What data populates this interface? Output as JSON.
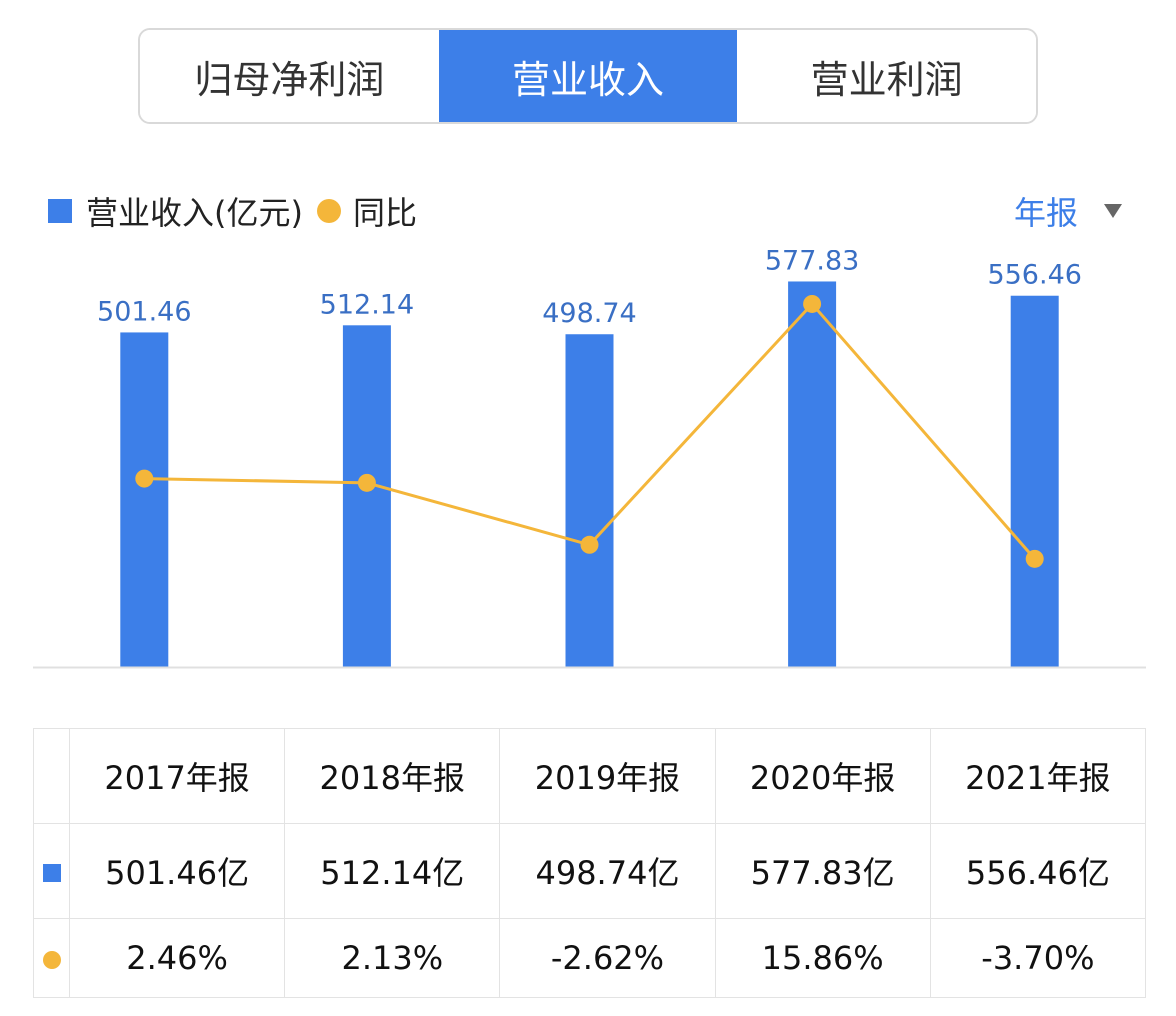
{
  "tabs": [
    {
      "label": "归母净利润",
      "active": false
    },
    {
      "label": "营业收入",
      "active": true
    },
    {
      "label": "营业利润",
      "active": false
    }
  ],
  "legend": {
    "bar_label": "营业收入(亿元)",
    "line_label": "同比"
  },
  "period_selector": {
    "label": "年报"
  },
  "colors": {
    "bar": "#3d7fe8",
    "line": "#f4b63a",
    "positive": "#d64b4b",
    "negative": "#2e9a6e"
  },
  "chart_data": {
    "type": "bar",
    "categories": [
      "2017年报",
      "2018年报",
      "2019年报",
      "2020年报",
      "2021年报"
    ],
    "series": [
      {
        "name": "营业收入(亿元)",
        "type": "bar",
        "values": [
          501.46,
          512.14,
          498.74,
          577.83,
          556.46
        ],
        "labels": [
          "501.46",
          "512.14",
          "498.74",
          "577.83",
          "556.46"
        ]
      },
      {
        "name": "同比",
        "type": "line",
        "values": [
          2.46,
          2.13,
          -2.62,
          15.86,
          -3.7
        ]
      }
    ],
    "bar_ylim": [
      0,
      625
    ],
    "line_ylim": [
      -12,
      20
    ]
  },
  "table": {
    "headers": [
      "2017年报",
      "2018年报",
      "2019年报",
      "2020年报",
      "2021年报"
    ],
    "revenue": [
      "501.46亿",
      "512.14亿",
      "498.74亿",
      "577.83亿",
      "556.46亿"
    ],
    "yoy": [
      "2.46%",
      "2.13%",
      "-2.62%",
      "15.86%",
      "-3.70%"
    ]
  }
}
